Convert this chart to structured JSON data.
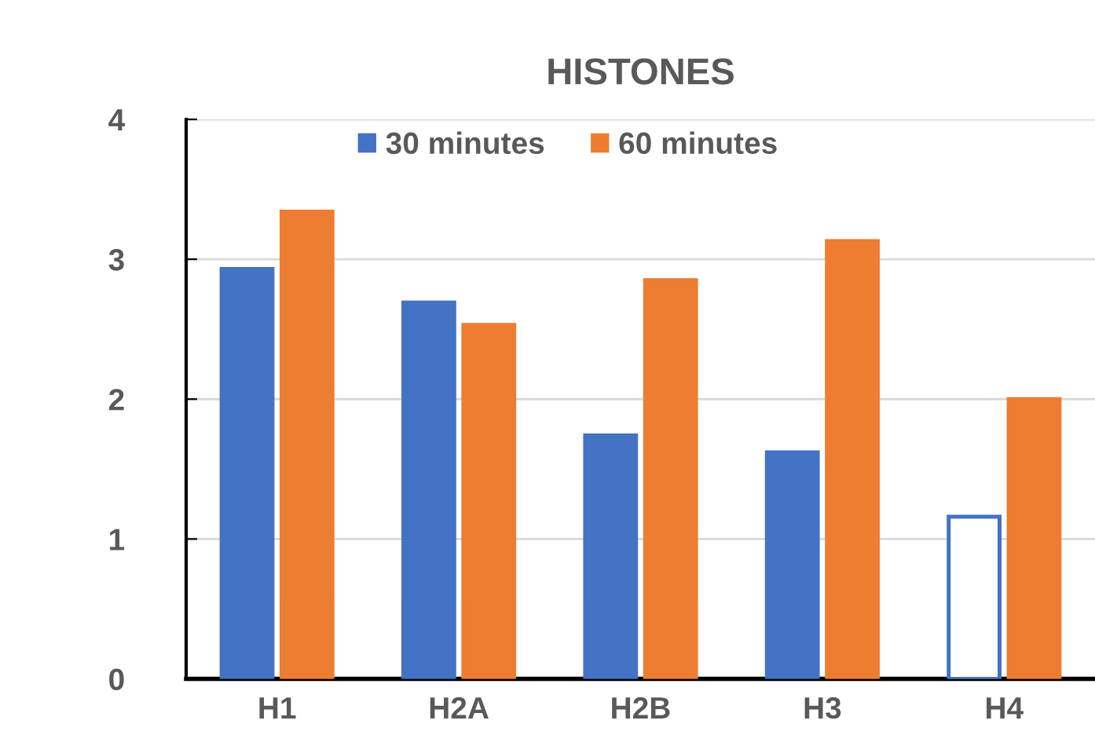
{
  "chart_data": {
    "type": "bar",
    "title": "HISTONES",
    "categories": [
      "H1",
      "H2A",
      "H2B",
      "H3",
      "H4"
    ],
    "series": [
      {
        "name": "30 minutes",
        "color": "#4472c4",
        "colors": [
          "#4472c4",
          "#4472c4",
          "#4472c4",
          "#4472c4",
          "#ffffff"
        ],
        "values": [
          2.93,
          2.69,
          1.74,
          1.62,
          1.16
        ]
      },
      {
        "name": "60 minutes",
        "color": "#ed7d31",
        "values": [
          3.34,
          2.53,
          2.85,
          3.13,
          2.0
        ]
      }
    ],
    "ylim": [
      0,
      4
    ],
    "yticks": [
      0,
      1,
      2,
      3,
      4
    ],
    "grid": "y",
    "legend": "top"
  }
}
